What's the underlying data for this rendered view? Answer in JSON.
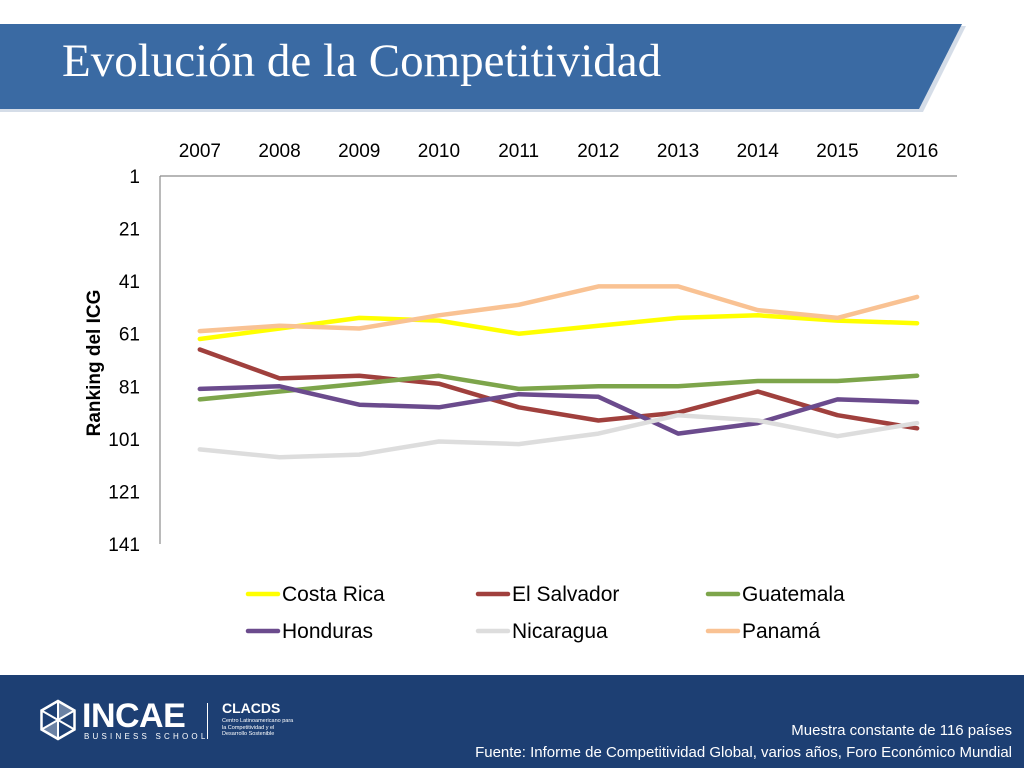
{
  "slide": {
    "title": "Evolución de la Competitividad",
    "colors": {
      "banner": "#3a6aa3",
      "banner_edge": "#d5dde8",
      "footer": "#1d3f73"
    }
  },
  "chart_data": {
    "type": "line",
    "categories": [
      "2007",
      "2008",
      "2009",
      "2010",
      "2011",
      "2012",
      "2013",
      "2014",
      "2015",
      "2016"
    ],
    "xaxis_position": "top",
    "ylabel": "Ranking del ICG",
    "yaxis_reversed": true,
    "ylim": [
      1,
      141
    ],
    "yticks": [
      "1",
      "21",
      "41",
      "61",
      "81",
      "101",
      "121",
      "141"
    ],
    "grid": false,
    "legend_position": "bottom",
    "series": [
      {
        "name": "Costa Rica",
        "color": "#ffff00",
        "values": [
          63,
          59,
          55,
          56,
          61,
          58,
          55,
          54,
          56,
          57
        ]
      },
      {
        "name": "El Salvador",
        "color": "#a0403d",
        "values": [
          67,
          78,
          77,
          80,
          89,
          94,
          91,
          83,
          92,
          97
        ]
      },
      {
        "name": "Guatemala",
        "color": "#7da54b",
        "values": [
          86,
          83,
          80,
          77,
          82,
          81,
          81,
          79,
          79,
          77
        ]
      },
      {
        "name": "Honduras",
        "color": "#6b4b8d",
        "values": [
          82,
          81,
          88,
          89,
          84,
          85,
          99,
          95,
          86,
          87
        ]
      },
      {
        "name": "Nicaragua",
        "color": "#dddddd",
        "values": [
          105,
          108,
          107,
          102,
          103,
          99,
          92,
          94,
          100,
          95
        ]
      },
      {
        "name": "Panamá",
        "color": "#f9c293",
        "values": [
          60,
          58,
          59,
          54,
          50,
          43,
          43,
          52,
          55,
          47
        ]
      }
    ]
  },
  "footer": {
    "brand": "INCAE",
    "brand_sub": "BUSINESS SCHOOL",
    "partner": "CLACDS",
    "partner_sub": "Centro Latinoamericano para la Competitividad y el Desarrollo Sostenible",
    "note": "Muestra constante de 116 países",
    "source": "Fuente: Informe de Competitividad Global, varios años, Foro Económico Mundial"
  }
}
